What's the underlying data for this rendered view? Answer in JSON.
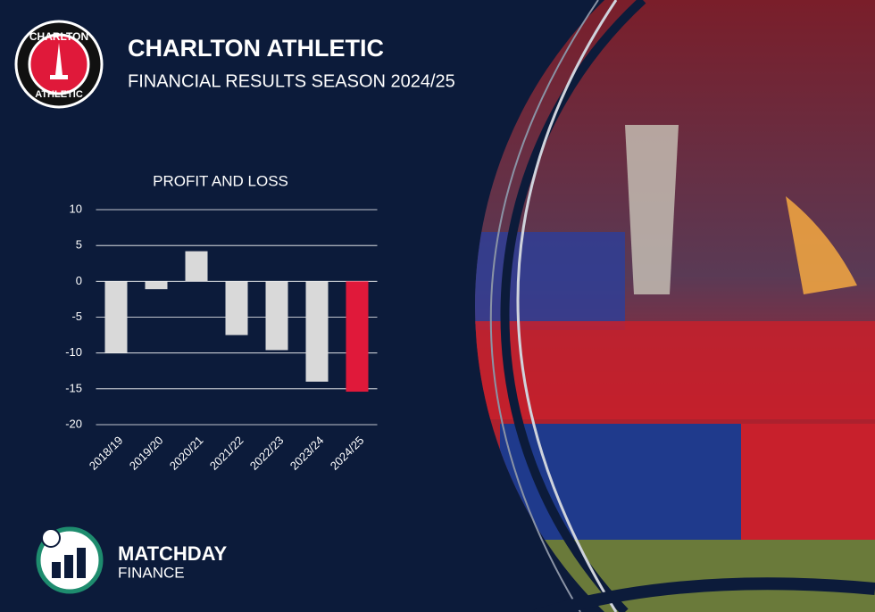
{
  "header": {
    "title": "CHARLTON ATHLETIC",
    "subtitle": "FINANCIAL RESULTS SEASON 2024/25"
  },
  "logo": {
    "top": "CHARLTON",
    "bottom": "ATHLETIC"
  },
  "brand": {
    "name": "MATCHDAY",
    "sub": "FINANCE"
  },
  "chart_data": {
    "type": "bar",
    "title": "PROFIT AND LOSS",
    "categories": [
      "2018/19",
      "2019/20",
      "2020/21",
      "2021/22",
      "2022/23",
      "2023/24",
      "2024/25"
    ],
    "values": [
      -10,
      -1.1,
      4.2,
      -7.5,
      -9.6,
      -14,
      -15.4
    ],
    "colors": [
      "#d9d9d9",
      "#d9d9d9",
      "#d9d9d9",
      "#d9d9d9",
      "#d9d9d9",
      "#d9d9d9",
      "#e0193a"
    ],
    "ylim": [
      -20,
      10
    ],
    "yticks": [
      10,
      5,
      0,
      -5,
      -10,
      -15,
      -20
    ],
    "grid": true
  }
}
